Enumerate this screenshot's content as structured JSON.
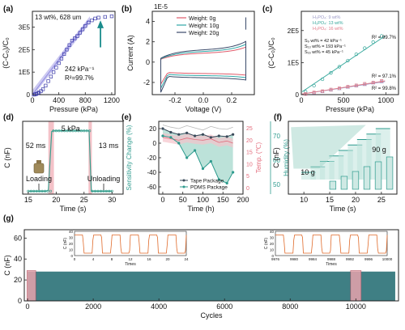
{
  "panel_letters": [
    "(a)",
    "(b)",
    "(c)",
    "(d)",
    "(e)",
    "(f)",
    "(g)"
  ],
  "chart_data": [
    {
      "id": "a",
      "type": "scatter",
      "xlabel": "Pressure (kPa)",
      "ylabel": "(C-C₀)/C₀",
      "x_ticks": [
        "0",
        "400",
        "800",
        "1200"
      ],
      "y_ticks": [
        "0",
        "1E5",
        "2E5",
        "3E5"
      ],
      "xlim": [
        0,
        1250
      ],
      "ylim": [
        0,
        370000
      ],
      "annotations": {
        "condition": "13 wt%,  628 um",
        "sensitivity": "242 kPa⁻¹",
        "r2": "R²=99.7%"
      },
      "series": [
        {
          "x": [
            20,
            40,
            60,
            80,
            100,
            130,
            160,
            200,
            240,
            280,
            320,
            360,
            400,
            440,
            480,
            520,
            560,
            600,
            640,
            680,
            720,
            760,
            800,
            850,
            900,
            950,
            1000,
            1100,
            1200
          ],
          "values": [
            0,
            1000,
            3000,
            6000,
            10000,
            16000,
            24000,
            40000,
            60000,
            80000,
            100000,
            120000,
            140000,
            160000,
            180000,
            200000,
            220000,
            240000,
            250000,
            260000,
            275000,
            290000,
            305000,
            320000,
            330000,
            338000,
            342000,
            345000,
            348000
          ]
        }
      ],
      "fit": {
        "x": [
          0,
          850
        ],
        "values": [
          0,
          330000
        ]
      },
      "colors": {
        "points": "#3a3aa8",
        "fit": "#c6c3f0",
        "arrow": "#1a8c8c"
      }
    },
    {
      "id": "b",
      "type": "line",
      "xlabel": "Voltage (V)",
      "ylabel": "Current (A)",
      "scale_note": "1E-5",
      "x_ticks": [
        "-0.2",
        "0.0",
        "0.2"
      ],
      "y_ticks": [
        "-2",
        "0",
        "2",
        "4"
      ],
      "xlim": [
        -0.36,
        0.36
      ],
      "ylim": [
        -3.2,
        5
      ],
      "series": [
        {
          "name": "Weight: 0g",
          "color": "#e05a6a",
          "scale": 0.8
        },
        {
          "name": "Weight: 10g",
          "color": "#2fa7a7",
          "scale": 0.95
        },
        {
          "name": "Weight: 20g",
          "color": "#3a4a6a",
          "scale": 1.1
        }
      ]
    },
    {
      "id": "c",
      "type": "scatter",
      "xlabel": "Pressure (kPa)",
      "ylabel": "(C-C₀)/C₀",
      "x_ticks": [
        "0",
        "500",
        "1000"
      ],
      "y_ticks": [
        "0",
        "1E5",
        "2E5"
      ],
      "xlim": [
        0,
        1150
      ],
      "ylim": [
        0,
        260000
      ],
      "legend": [
        "H₃PO₄: 9 wt%",
        "H₃PO₄: 13 wt%",
        "H₃PO₄: 16 wt%"
      ],
      "sensitivity_labels": [
        "S₉ wt% = 42 kPa⁻¹",
        "S₁₃ wt% = 193 kPa⁻¹",
        "S₁₆ wt% = 45 kPa⁻¹"
      ],
      "series": [
        {
          "name": "9 wt%",
          "color": "#9a98c6",
          "r2": "R² = 97.1%",
          "x": [
            50,
            150,
            250,
            350,
            450,
            550,
            650,
            750,
            850,
            950
          ],
          "values": [
            2000,
            6000,
            10000,
            15000,
            19000,
            24000,
            28000,
            32000,
            37000,
            41000
          ]
        },
        {
          "name": "13 wt%",
          "color": "#35a79b",
          "r2": "R² = 99.7%",
          "x": [
            50,
            150,
            250,
            350,
            450,
            550,
            650,
            750,
            850,
            950
          ],
          "values": [
            9000,
            28000,
            48000,
            68000,
            87000,
            106000,
            126000,
            145000,
            164000,
            183000
          ]
        },
        {
          "name": "16 wt%",
          "color": "#e07a88",
          "r2": "R² = 99.8%",
          "x": [
            50,
            150,
            250,
            350,
            450,
            550,
            650,
            750,
            850,
            950
          ],
          "values": [
            2000,
            7000,
            11000,
            16000,
            20000,
            25000,
            29000,
            34000,
            38000,
            43000
          ]
        }
      ]
    },
    {
      "id": "d",
      "type": "line",
      "xlabel": "Time (s)",
      "ylabel": "C (nF)",
      "x_ticks": [
        "15",
        "20",
        "25",
        "30"
      ],
      "xlim": [
        14,
        32
      ],
      "ylim": [
        0,
        10
      ],
      "annotations": {
        "pressure": "5 kPa",
        "rise": "52 ms",
        "fall": "13 ms",
        "loading": "Loading",
        "unloading": "Unloading"
      },
      "series": [
        {
          "x": [
            15,
            16,
            17,
            18,
            18.6,
            19.2,
            19.5,
            20,
            21,
            22,
            23,
            24,
            25,
            25.6,
            25.9,
            26.3,
            27,
            28,
            29,
            30
          ],
          "values": [
            0.4,
            0.4,
            0.4,
            0.4,
            0.5,
            8.6,
            8.7,
            8.7,
            8.7,
            8.7,
            8.7,
            8.7,
            8.7,
            8.7,
            8.7,
            0.4,
            0.4,
            0.4,
            0.4,
            0.4
          ]
        }
      ],
      "colors": {
        "line": "#3aa08f",
        "highlight": "#f4c2c8"
      }
    },
    {
      "id": "e",
      "type": "line",
      "xlabel": "Time (h)",
      "ylabel_left": "Sensitivity Change (%)",
      "ylabel_right1": "Temp. (℃)",
      "ylabel_right2": "Humidity (%)",
      "x_ticks": [
        "0",
        "50",
        "100",
        "150",
        "200"
      ],
      "y_ticks_left": [
        "-60",
        "-40",
        "-20",
        "0",
        "20"
      ],
      "y_ticks_right1": [
        "0",
        "5",
        "10",
        "15",
        "20",
        "25"
      ],
      "y_ticks_right2": [
        "50",
        "60",
        "70"
      ],
      "xlim": [
        -10,
        200
      ],
      "ylim": [
        -70,
        30
      ],
      "legend": [
        "Tape Package",
        "PDMS Package"
      ],
      "series": [
        {
          "name": "Tape Package",
          "color": "#3a4a5a",
          "x": [
            0,
            20,
            40,
            60,
            80,
            100,
            120,
            140,
            160,
            175
          ],
          "values": [
            20,
            15,
            12,
            14,
            10,
            12,
            8,
            10,
            9,
            12
          ]
        },
        {
          "name": "PDMS Package",
          "color": "#2e9b8e",
          "x": [
            0,
            20,
            40,
            60,
            80,
            100,
            120,
            140,
            160,
            175
          ],
          "values": [
            10,
            8,
            0,
            -20,
            -10,
            -35,
            -25,
            -50,
            -55,
            -40
          ]
        },
        {
          "name": "Temp",
          "color": "#e36a7a",
          "x": [
            0,
            20,
            40,
            60,
            80,
            100,
            120,
            140,
            160,
            175
          ],
          "values": [
            22,
            20,
            18,
            21,
            19,
            18,
            20,
            15,
            17,
            14
          ]
        },
        {
          "name": "Humidity",
          "color": "#b8b8b8",
          "x": [
            0,
            20,
            40,
            60,
            80,
            100,
            120,
            140,
            160,
            175
          ],
          "values": [
            75,
            72,
            70,
            74,
            71,
            68,
            73,
            70,
            69,
            72
          ]
        }
      ]
    },
    {
      "id": "f",
      "type": "line",
      "xlabel": "Time (s)",
      "ylabel": "C (nF)",
      "x_ticks": [
        "10",
        "15",
        "20",
        "25"
      ],
      "xlim": [
        7,
        28
      ],
      "ylim": [
        0,
        10
      ],
      "annotations": {
        "low": "10 g",
        "high": "90 g"
      },
      "steps": 9,
      "colors": {
        "line": "#2e9b8e",
        "fill": "#bfe3dd"
      }
    },
    {
      "id": "g",
      "type": "area",
      "xlabel": "Cycles",
      "ylabel": "C (nF)",
      "x_ticks": [
        "0",
        "2000",
        "4000",
        "6000",
        "8000",
        "10000"
      ],
      "y_ticks": [
        "0",
        "20",
        "40",
        "60"
      ],
      "xlim": [
        -100,
        11300
      ],
      "ylim": [
        0,
        68
      ],
      "level": 28,
      "inset_left": {
        "xlabel": "Times",
        "ylabel": "C (nF)",
        "x_ticks": [
          "0",
          "4",
          "8",
          "12",
          "16",
          "20",
          "24"
        ],
        "y_ticks": [
          "0",
          "10",
          "20",
          "30",
          "40"
        ]
      },
      "inset_right": {
        "xlabel": "Times",
        "ylabel": "C (nF)",
        "x_ticks": [
          "9976",
          "9980",
          "9984",
          "9988",
          "9992",
          "9996",
          "10000"
        ],
        "y_ticks": [
          "0",
          "10",
          "20",
          "30",
          "40"
        ]
      },
      "highlight_x": [
        [
          -20,
          250
        ],
        [
          9840,
          10160
        ]
      ],
      "colors": {
        "fill": "#3f7f84",
        "highlight": "#e8a3ac",
        "inset_line": "#e06a2a"
      }
    }
  ]
}
